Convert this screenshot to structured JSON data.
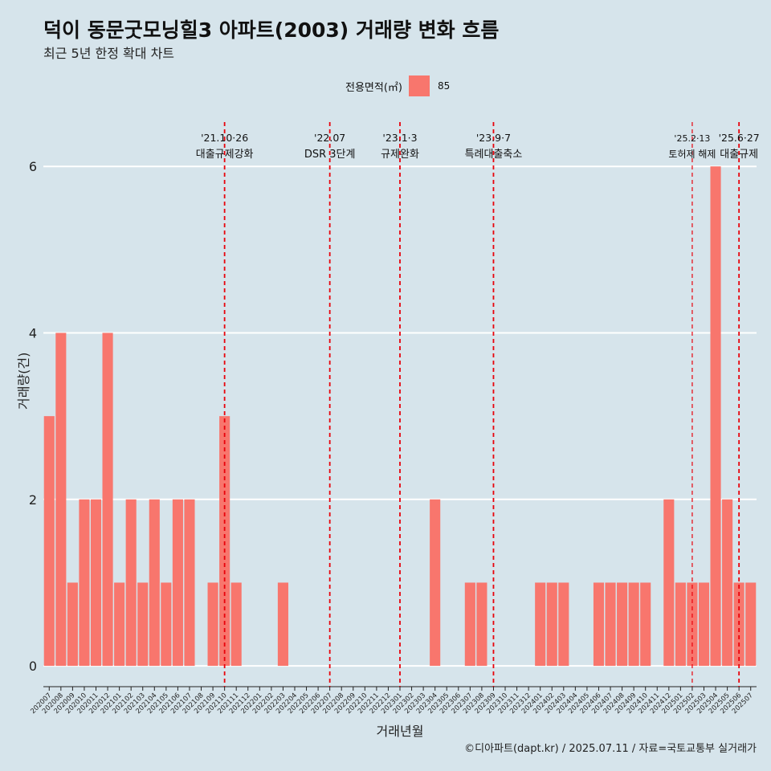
{
  "title": "덕이 동문굿모닝힐3 아파트(2003) 거래량 변화 흐름",
  "subtitle": "최근 5년 한정 확대 차트",
  "legend": {
    "title": "전용면적(㎡)",
    "value": "85",
    "color": "#f8766d"
  },
  "footer": "©디아파트(dapt.kr) / 2025.07.11 / 자료=국토교통부 실거래가",
  "chart_data": {
    "type": "bar",
    "xlabel": "거래년월",
    "ylabel": "거래량(건)",
    "ylim": [
      -0.25,
      6.6
    ],
    "yticks": [
      0,
      2,
      4,
      6
    ],
    "grid": "horizontal",
    "legend_placement": "top",
    "bar_color": "#f8766d",
    "categories": [
      "202007",
      "202008",
      "202009",
      "202010",
      "202011",
      "202012",
      "202101",
      "202102",
      "202103",
      "202104",
      "202105",
      "202106",
      "202107",
      "202108",
      "202109",
      "202110",
      "202111",
      "202112",
      "202201",
      "202202",
      "202203",
      "202204",
      "202205",
      "202206",
      "202207",
      "202208",
      "202209",
      "202210",
      "202211",
      "202212",
      "202301",
      "202302",
      "202303",
      "202304",
      "202305",
      "202306",
      "202307",
      "202308",
      "202309",
      "202310",
      "202311",
      "202312",
      "202401",
      "202402",
      "202403",
      "202404",
      "202405",
      "202406",
      "202407",
      "202408",
      "202409",
      "202410",
      "202411",
      "202412",
      "202501",
      "202502",
      "202503",
      "202504",
      "202505",
      "202506",
      "202507"
    ],
    "series": [
      {
        "name": "85",
        "values": [
          3,
          4,
          1,
          2,
          2,
          4,
          1,
          2,
          1,
          2,
          1,
          2,
          2,
          0,
          1,
          3,
          1,
          0,
          0,
          0,
          1,
          0,
          0,
          0,
          0,
          0,
          0,
          0,
          0,
          0,
          0,
          0,
          0,
          2,
          0,
          0,
          1,
          1,
          0,
          0,
          0,
          0,
          1,
          1,
          1,
          0,
          0,
          1,
          1,
          1,
          1,
          1,
          0,
          2,
          1,
          1,
          1,
          6,
          2,
          1,
          1
        ]
      }
    ],
    "annotations": [
      {
        "date": "'21.10·26",
        "label": "대출규제강화",
        "category": "202110",
        "small": false
      },
      {
        "date": "'22.07",
        "label": "DSR 3단계",
        "category": "202207",
        "small": false
      },
      {
        "date": "'23.1·3",
        "label": "규제완화",
        "category": "202301",
        "small": false
      },
      {
        "date": "'23.9·7",
        "label": "특례대출축소",
        "category": "202309",
        "small": false
      },
      {
        "date": "'25.2·13",
        "label": "토허제 해제",
        "category": "202502",
        "small": true
      },
      {
        "date": "'25.6·27",
        "label": "대출규제",
        "category": "202506",
        "small": false
      }
    ]
  }
}
